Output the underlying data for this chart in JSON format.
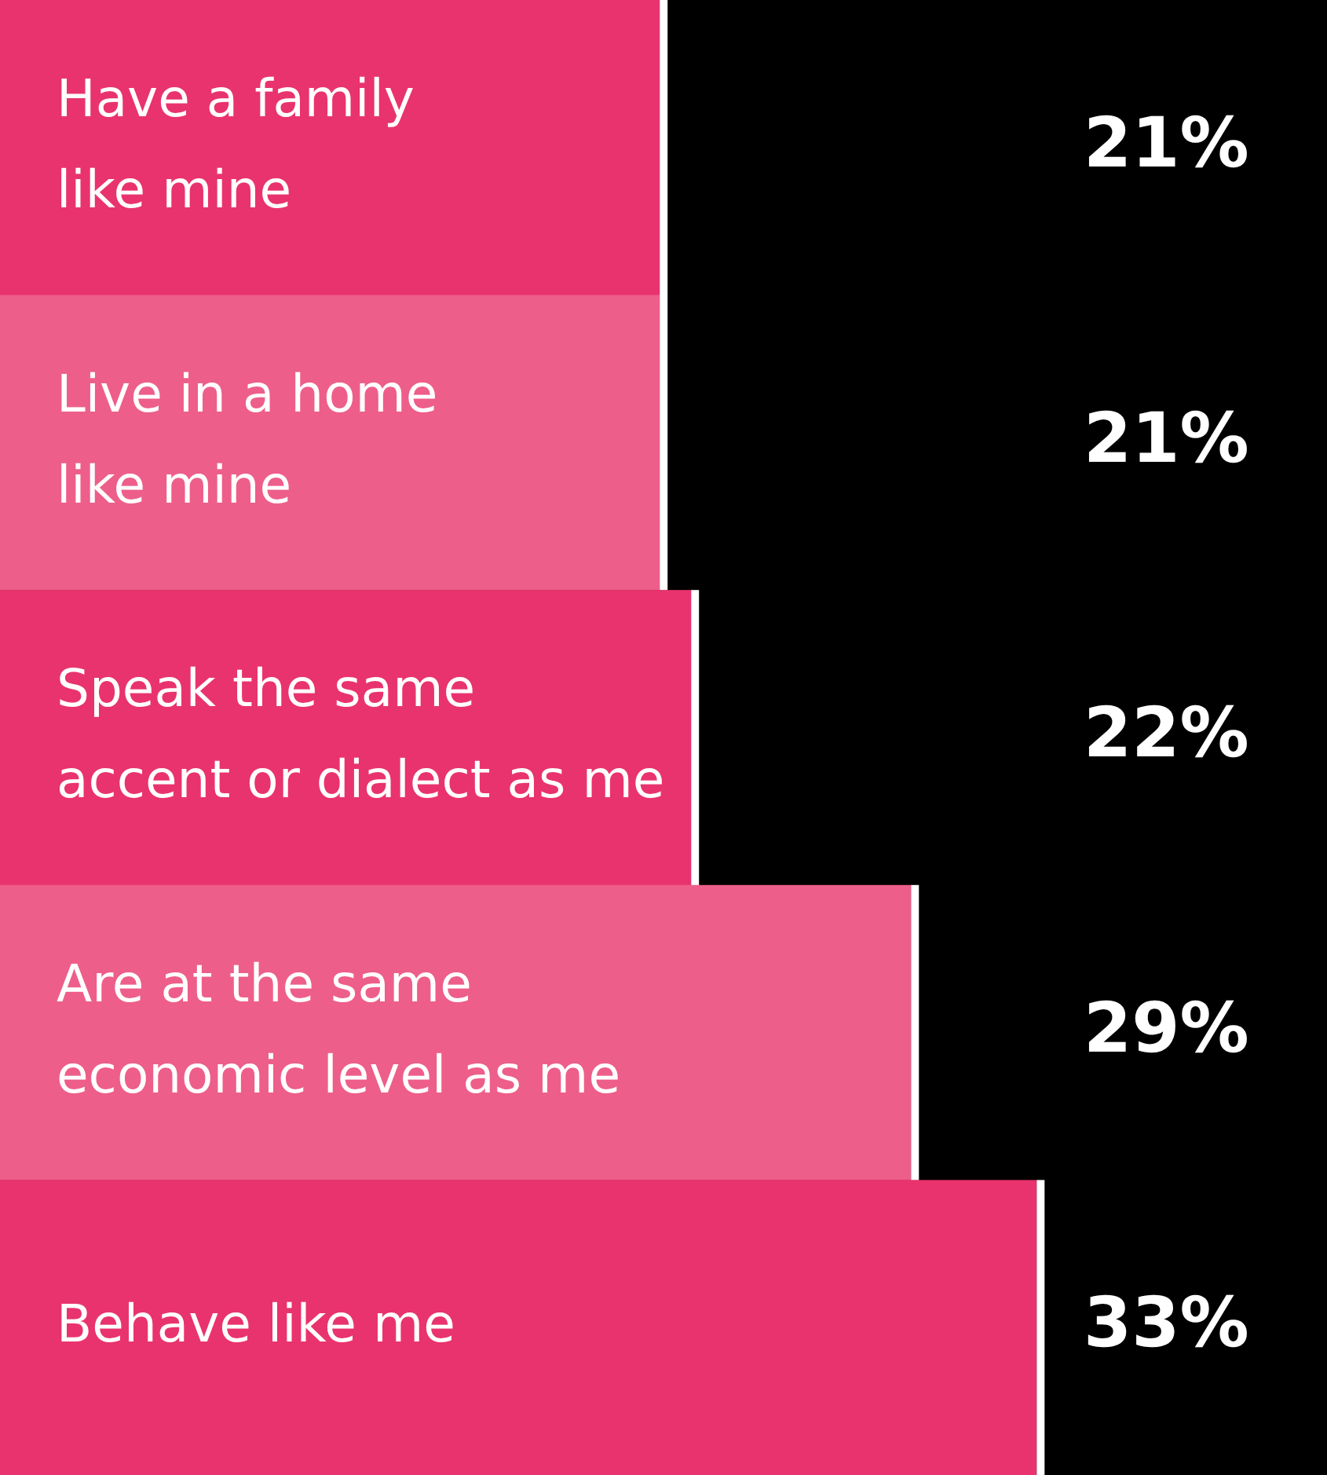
{
  "chart_data": {
    "type": "bar",
    "orientation": "horizontal",
    "categories": [
      "Have a family like mine",
      "Live in a home like mine",
      "Speak the same accent or dialect as me",
      "Are at the same economic level as me",
      "Behave like me"
    ],
    "values": [
      21,
      21,
      22,
      29,
      33
    ],
    "colors": [
      "#e9336e",
      "#ee5e8a",
      "#e9336e",
      "#ee5e8a",
      "#e9336e"
    ],
    "value_labels": [
      "21%",
      "21%",
      "22%",
      "29%",
      "33%"
    ],
    "grid": false,
    "legend": false
  }
}
